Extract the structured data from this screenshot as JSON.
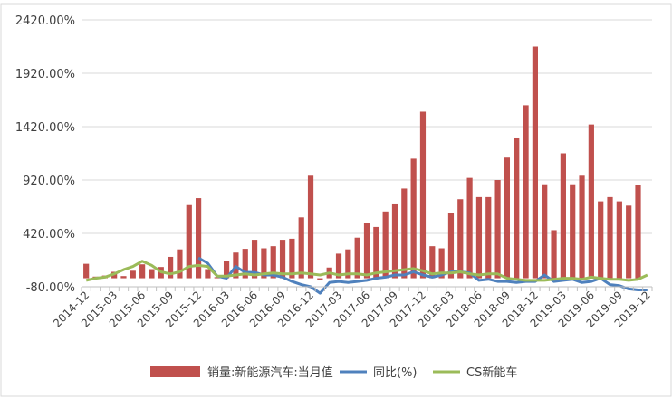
{
  "chart_data": {
    "type": "bar",
    "title": "",
    "xlabel": "",
    "ylabel": "",
    "ylim": [
      -80,
      2420
    ],
    "grid": true,
    "legend_position": "bottom",
    "yticks": [
      "2420.00%",
      "1920.00%",
      "1420.00%",
      "920.00%",
      "420.00%",
      "-80.00%"
    ],
    "ytick_values": [
      2420,
      1920,
      1420,
      920,
      420,
      -80
    ],
    "xtick_labels": [
      "2014-12",
      "2015-03",
      "2015-06",
      "2015-09",
      "2015-12",
      "2016-03",
      "2016-06",
      "2016-09",
      "2016-12",
      "2017-03",
      "2017-06",
      "2017-09",
      "2017-12",
      "2018-03",
      "2018-06",
      "2018-09",
      "2018-12",
      "2019-03",
      "2019-06",
      "2019-09",
      "2019-12"
    ],
    "categories": [
      "2014-12",
      "2015-01",
      "2015-02",
      "2015-03",
      "2015-04",
      "2015-05",
      "2015-06",
      "2015-07",
      "2015-08",
      "2015-09",
      "2015-10",
      "2015-11",
      "2015-12",
      "2016-01",
      "2016-02",
      "2016-03",
      "2016-04",
      "2016-05",
      "2016-06",
      "2016-07",
      "2016-08",
      "2016-09",
      "2016-10",
      "2016-11",
      "2016-12",
      "2017-01",
      "2017-02",
      "2017-03",
      "2017-04",
      "2017-05",
      "2017-06",
      "2017-07",
      "2017-08",
      "2017-09",
      "2017-10",
      "2017-11",
      "2017-12",
      "2018-01",
      "2018-02",
      "2018-03",
      "2018-04",
      "2018-05",
      "2018-06",
      "2018-07",
      "2018-08",
      "2018-09",
      "2018-10",
      "2018-11",
      "2018-12",
      "2019-01",
      "2019-02",
      "2019-03",
      "2019-04",
      "2019-05",
      "2019-06",
      "2019-07",
      "2019-08",
      "2019-09",
      "2019-10",
      "2019-11",
      "2019-12"
    ],
    "series": [
      {
        "name": "销量:新能源汽车:当月值",
        "type": "bar",
        "color": "#c0504d",
        "values": [
          135,
          15,
          25,
          60,
          20,
          70,
          130,
          85,
          105,
          200,
          270,
          685,
          750,
          85,
          10,
          160,
          240,
          275,
          360,
          280,
          300,
          360,
          370,
          570,
          960,
          -15,
          100,
          230,
          270,
          380,
          520,
          480,
          625,
          700,
          840,
          1120,
          1560,
          300,
          280,
          610,
          740,
          940,
          760,
          760,
          920,
          1130,
          1310,
          1620,
          2170,
          880,
          450,
          1170,
          880,
          960,
          1440,
          720,
          760,
          720,
          680,
          870,
          null
        ]
      },
      {
        "name": "同比(%)",
        "type": "line",
        "color": "#4f81bd",
        "values": [
          null,
          null,
          null,
          null,
          null,
          null,
          null,
          null,
          null,
          null,
          null,
          null,
          190,
          140,
          20,
          0,
          110,
          55,
          55,
          30,
          30,
          10,
          -30,
          -60,
          -80,
          -140,
          -40,
          -30,
          -40,
          -30,
          -20,
          0,
          10,
          30,
          30,
          60,
          30,
          10,
          30,
          60,
          60,
          50,
          -20,
          -10,
          -30,
          -30,
          -40,
          -30,
          -30,
          30,
          -30,
          -20,
          -10,
          -40,
          -30,
          0,
          -60,
          -70,
          -100,
          -110,
          -110
        ]
      },
      {
        "name": "CS新能车",
        "type": "line",
        "color": "#9bbb59",
        "values": [
          -20,
          0,
          10,
          40,
          80,
          110,
          160,
          120,
          60,
          40,
          60,
          110,
          120,
          110,
          20,
          20,
          30,
          40,
          30,
          40,
          50,
          40,
          40,
          50,
          40,
          30,
          50,
          30,
          40,
          40,
          30,
          50,
          60,
          70,
          80,
          90,
          70,
          40,
          50,
          50,
          60,
          40,
          30,
          40,
          40,
          0,
          -10,
          -20,
          -20,
          -20,
          -10,
          0,
          0,
          -10,
          10,
          0,
          -10,
          -10,
          -20,
          -10,
          30
        ]
      }
    ]
  }
}
